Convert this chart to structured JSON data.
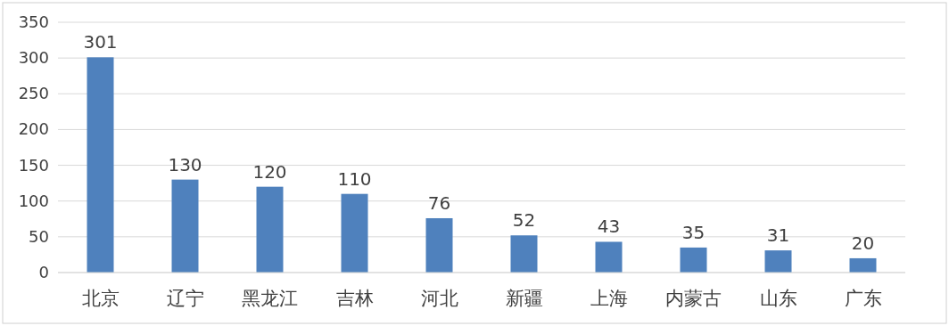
{
  "chart_data": {
    "type": "bar",
    "categories": [
      "北京",
      "辽宁",
      "黑龙江",
      "吉林",
      "河北",
      "新疆",
      "上海",
      "内蒙古",
      "山东",
      "广东"
    ],
    "values": [
      301,
      130,
      120,
      110,
      76,
      52,
      43,
      35,
      31,
      20
    ],
    "color": "#4f81bd",
    "ylim": [
      0,
      350
    ],
    "yticks": [
      0,
      50,
      100,
      150,
      200,
      250,
      300,
      350
    ],
    "grid": "y",
    "data_labels": true
  }
}
